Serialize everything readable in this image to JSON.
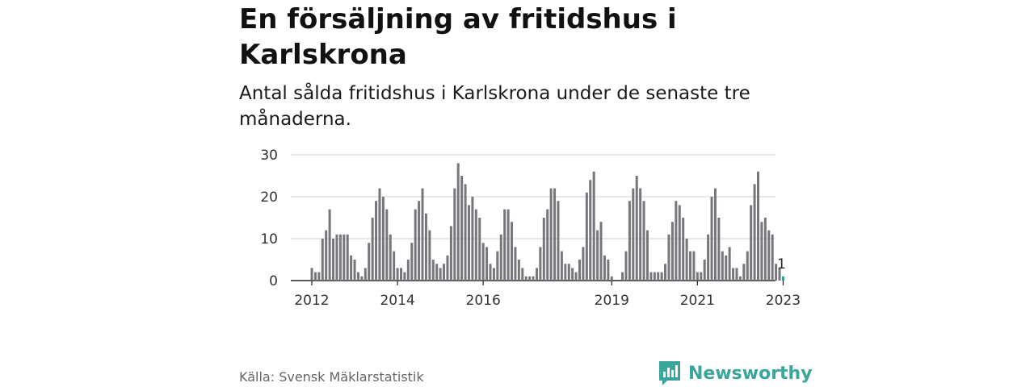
{
  "title": "En försäljning av fritidshus i Karlskrona",
  "subtitle": "Antal sålda fritidshus i Karlskrona under de senaste tre månaderna.",
  "source": "Källa: Svensk Mäklarstatistik",
  "brand": "Newsworthy",
  "colors": {
    "bar": "#77767c",
    "highlight": "#2aa198",
    "grid": "#d9d9d9",
    "brand": "#3aa59a"
  },
  "chart_data": {
    "type": "bar",
    "title": "En försäljning av fritidshus i Karlskrona",
    "subtitle": "Antal sålda fritidshus i Karlskrona under de senaste tre månaderna.",
    "xlabel": "",
    "ylabel": "",
    "ylim": [
      0,
      30
    ],
    "yticks": [
      0,
      10,
      20,
      30
    ],
    "xticks": [
      "2012",
      "2014",
      "2016",
      "2019",
      "2021",
      "2023"
    ],
    "start": "2012-01",
    "grid": true,
    "legend": "none",
    "values": [
      3,
      2,
      2,
      10,
      12,
      17,
      10,
      11,
      11,
      11,
      11,
      6,
      5,
      2,
      1,
      3,
      9,
      15,
      19,
      22,
      20,
      17,
      11,
      7,
      3,
      3,
      2,
      5,
      9,
      17,
      19,
      22,
      16,
      12,
      5,
      4,
      3,
      4,
      6,
      13,
      22,
      28,
      25,
      23,
      18,
      20,
      17,
      15,
      9,
      8,
      4,
      3,
      7,
      11,
      17,
      17,
      14,
      8,
      5,
      3,
      1,
      1,
      1,
      3,
      8,
      15,
      17,
      22,
      22,
      19,
      7,
      4,
      4,
      3,
      2,
      5,
      8,
      21,
      24,
      26,
      12,
      14,
      6,
      5,
      1,
      0,
      0,
      2,
      7,
      19,
      22,
      25,
      22,
      19,
      12,
      2,
      2,
      2,
      2,
      4,
      11,
      14,
      19,
      18,
      15,
      10,
      7,
      7,
      2,
      2,
      5,
      11,
      20,
      22,
      15,
      7,
      6,
      8,
      3,
      3,
      1,
      4,
      7,
      18,
      23,
      26,
      14,
      15,
      12,
      11,
      4,
      3,
      1
    ],
    "highlight": {
      "index": 132,
      "label": "1"
    }
  }
}
